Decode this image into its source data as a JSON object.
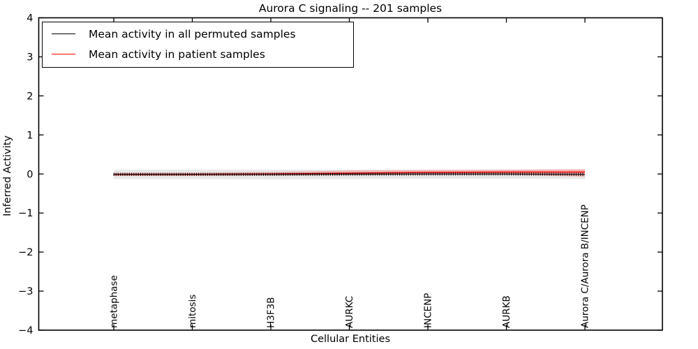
{
  "chart_data": {
    "type": "line",
    "title": "Aurora C signaling -- 201 samples",
    "xlabel": "Cellular Entities",
    "ylabel": "Inferred Activity",
    "ylim": [
      -4,
      4
    ],
    "yticks": [
      4,
      3,
      2,
      1,
      0,
      -1,
      -2,
      -3,
      -4
    ],
    "ytick_labels": [
      "4",
      "3",
      "2",
      "1",
      "0",
      "−1",
      "−2",
      "−3",
      "−4"
    ],
    "categories": [
      "metaphase",
      "mitosis",
      "H3F3B",
      "AURKC",
      "INCENP",
      "AURKB",
      "Aurora C/Aurora B/INCENP"
    ],
    "grid": false,
    "legend_position": "upper left",
    "series": [
      {
        "name": "Mean activity in all permuted samples",
        "color": "#000000",
        "marker": "vtick",
        "values": [
          -0.01,
          -0.01,
          -0.01,
          -0.005,
          0.0,
          0.0,
          -0.01
        ],
        "band_upper": [
          0.11,
          0.11,
          0.11,
          0.11,
          0.11,
          0.11,
          0.12
        ],
        "band_lower": [
          -0.13,
          -0.13,
          -0.14,
          -0.13,
          -0.12,
          -0.12,
          -0.13
        ],
        "band_color": "rgba(0,0,0,0.09)"
      },
      {
        "name": "Mean activity in patient samples",
        "color": "#ff0000",
        "marker": "none",
        "values": [
          -0.01,
          -0.01,
          0.0,
          0.02,
          0.04,
          0.05,
          0.05
        ],
        "band_upper": [
          0.03,
          0.03,
          0.05,
          0.09,
          0.1,
          0.11,
          0.12
        ],
        "band_lower": [
          -0.05,
          -0.05,
          -0.04,
          -0.03,
          -0.02,
          -0.02,
          -0.07
        ],
        "band_color": "rgba(255,0,0,0.22)"
      }
    ]
  },
  "colors": {
    "axis": "#000000",
    "background": "#ffffff",
    "permuted_line": "#000000",
    "patient_line": "#ff0000"
  }
}
